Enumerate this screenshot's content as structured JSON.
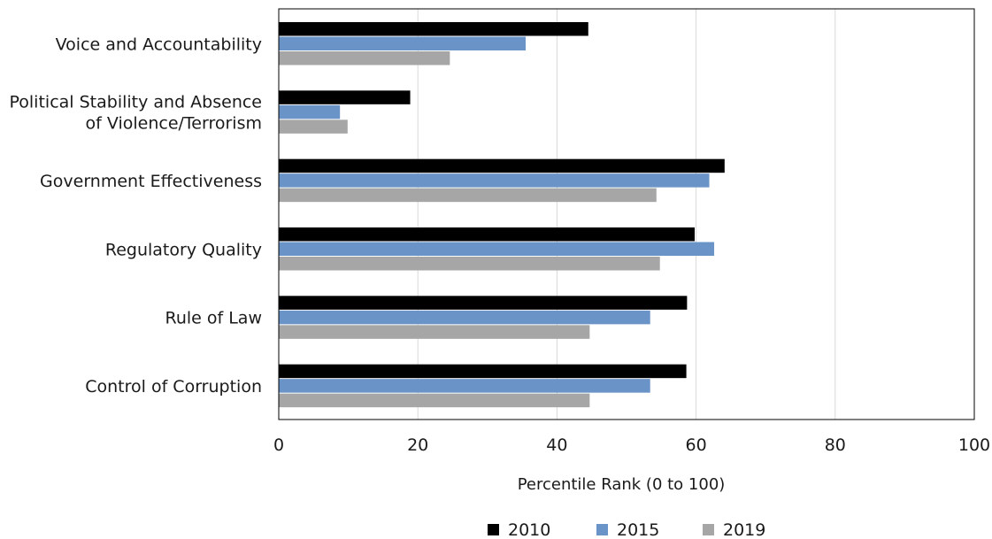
{
  "chart_data": {
    "type": "bar",
    "orientation": "horizontal",
    "title": "",
    "xlabel": "Percentile Rank (0 to 100)",
    "ylabel": "",
    "xlim": [
      0,
      100
    ],
    "xticks": [
      0,
      20,
      40,
      60,
      80,
      100
    ],
    "grid": "vertical",
    "legend_position": "bottom",
    "categories": [
      [
        "Voice and Accountability"
      ],
      [
        "Political Stability and Absence",
        "of Violence/Terrorism"
      ],
      [
        "Government Effectiveness"
      ],
      [
        "Regulatory Quality"
      ],
      [
        "Rule of Law"
      ],
      [
        "Control of Corruption"
      ]
    ],
    "series": [
      {
        "name": "2010",
        "color": "#000000",
        "values": [
          44.5,
          18.9,
          64.1,
          59.8,
          58.7,
          58.6
        ]
      },
      {
        "name": "2015",
        "color": "#6a93c7",
        "values": [
          35.5,
          8.8,
          61.9,
          62.6,
          53.4,
          53.4
        ]
      },
      {
        "name": "2019",
        "color": "#a6a6a6",
        "values": [
          24.6,
          9.9,
          54.3,
          54.8,
          44.7,
          44.7
        ]
      }
    ]
  }
}
